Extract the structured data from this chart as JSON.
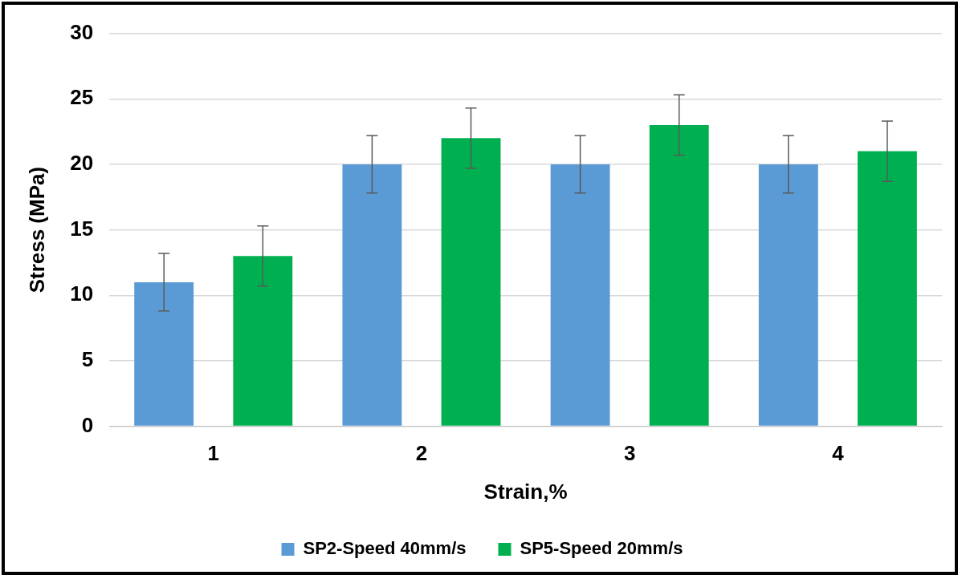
{
  "chart_data": {
    "type": "bar",
    "xlabel": "Strain,%",
    "ylabel": "Stress (MPa)",
    "categories": [
      "1",
      "2",
      "3",
      "4"
    ],
    "series": [
      {
        "name": "SP2-Speed 40mm/s",
        "color": "#5b9bd5",
        "values": [
          11,
          20,
          20,
          20
        ],
        "errors": [
          2.2,
          2.2,
          2.2,
          2.2
        ]
      },
      {
        "name": "SP5-Speed 20mm/s",
        "color": "#00b050",
        "values": [
          13,
          22,
          23,
          21
        ],
        "errors": [
          2.3,
          2.3,
          2.3,
          2.3
        ]
      }
    ],
    "ylim": [
      0,
      30
    ],
    "yticks": [
      0,
      5,
      10,
      15,
      20,
      25,
      30
    ],
    "grid": "y",
    "legend": "bottom"
  }
}
